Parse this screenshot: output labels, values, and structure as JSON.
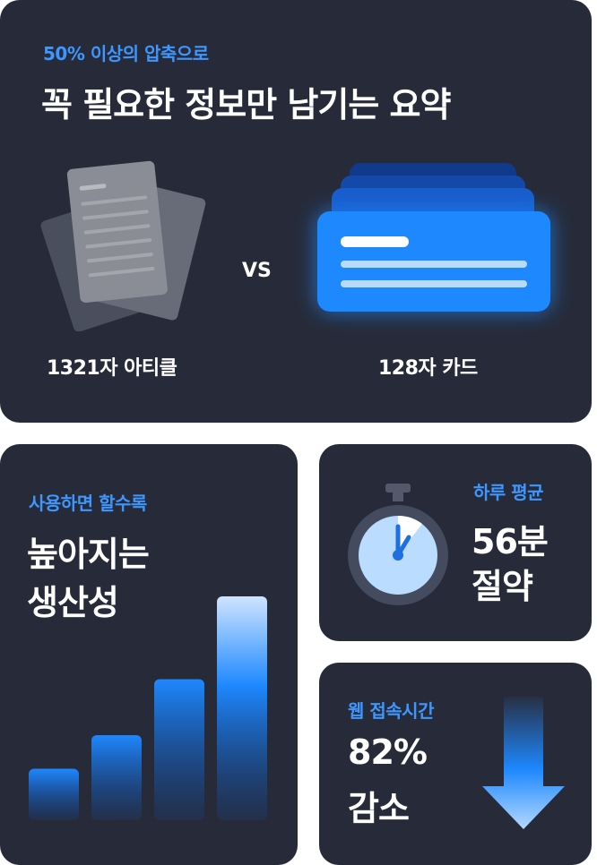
{
  "summary": {
    "subtitle": "50% 이상의 압축으로",
    "title": "꼭 필요한 정보만 남기는 요약",
    "vs_label": "VS",
    "article_caption": "1321자 아티클",
    "card_caption": "128자 카드"
  },
  "productivity": {
    "subtitle": "사용하면 할수록",
    "title_line1": "높아지는",
    "title_line2": "생산성",
    "bars_relative": [
      0.23,
      0.38,
      0.63,
      1.0
    ],
    "accent": "#1e88ff"
  },
  "time": {
    "subtitle": "하루 평균",
    "value": "56분",
    "label": "절약",
    "icon": "stopwatch-icon"
  },
  "web": {
    "subtitle": "웹 접속시간",
    "value": "82%",
    "label": "감소",
    "icon": "down-arrow-icon"
  },
  "colors": {
    "card_bg": "#272b39",
    "accent_text": "#3d97ff",
    "card_blue": "#1e88ff"
  }
}
